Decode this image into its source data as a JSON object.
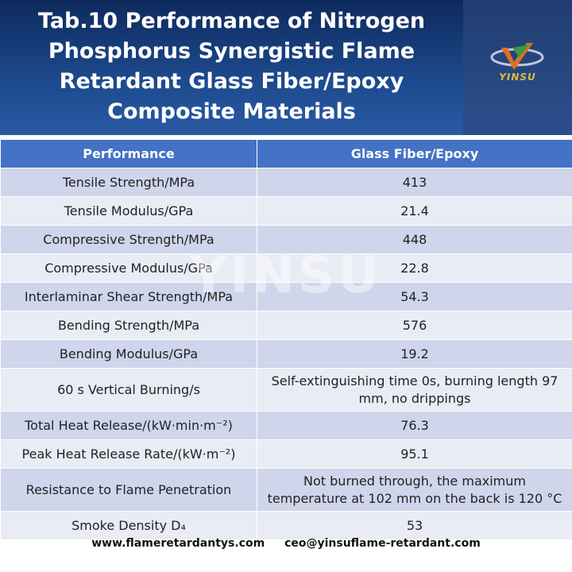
{
  "header": {
    "title_lines": [
      "Tab.10 Performance of Nitrogen",
      "Phosphorus Synergistic Flame",
      "Retardant Glass Fiber/Epoxy",
      "Composite Materials"
    ],
    "logo": "YINSU"
  },
  "watermark": "YINSU",
  "table": {
    "columns": [
      "Performance",
      "Glass Fiber/Epoxy"
    ],
    "rows": [
      [
        "Tensile Strength/MPa",
        "413"
      ],
      [
        "Tensile Modulus/GPa",
        "21.4"
      ],
      [
        "Compressive Strength/MPa",
        "448"
      ],
      [
        "Compressive Modulus/GPa",
        "22.8"
      ],
      [
        "Interlaminar Shear Strength/MPa",
        "54.3"
      ],
      [
        "Bending Strength/MPa",
        "576"
      ],
      [
        "Bending Modulus/GPa",
        "19.2"
      ],
      [
        "60 s Vertical Burning/s",
        "Self-extinguishing time 0s, burning length 97 mm, no drippings"
      ],
      [
        "Total Heat Release/(kW·min·m⁻²)",
        "76.3"
      ],
      [
        "Peak Heat Release Rate/(kW·m⁻²)",
        "95.1"
      ],
      [
        "Resistance to Flame Penetration",
        "Not burned through, the maximum temperature at 102 mm on the back is 120 °C"
      ],
      [
        "Smoke Density D₄",
        "53"
      ]
    ]
  },
  "footer": {
    "website": "www.flameretardantys.com",
    "email": "ceo@yinsuflame-retardant.com"
  }
}
